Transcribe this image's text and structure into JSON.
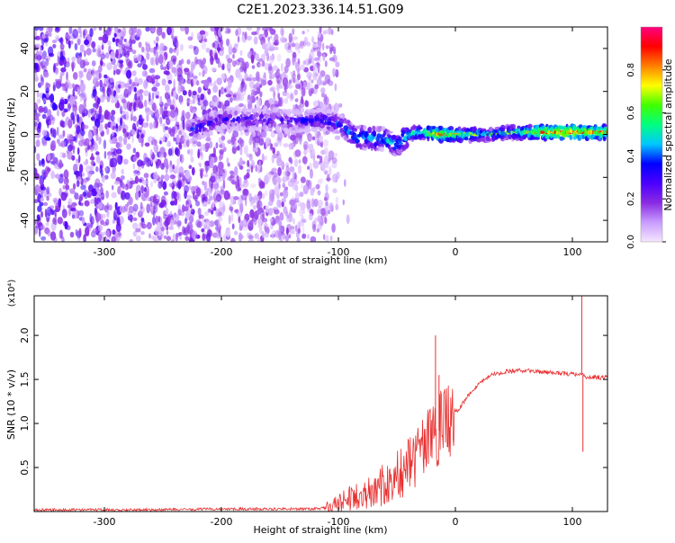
{
  "page_title": "C2E1.2023.336.14.51.G09",
  "chart_data": [
    {
      "type": "heatmap",
      "xlabel": "Height of straight line (km)",
      "ylabel": "Frequency (Hz)",
      "xlim": [
        -360,
        130
      ],
      "ylim": [
        -50,
        50
      ],
      "x_ticks": [
        -300,
        -200,
        -100,
        0,
        100
      ],
      "y_ticks": [
        -40,
        -20,
        0,
        20,
        40
      ],
      "colorbar": {
        "label": "Normalized spectral amplitude",
        "range": [
          0.0,
          1.0
        ],
        "ticks": [
          "0.0",
          "0.2",
          "0.4",
          "0.6",
          "0.8"
        ],
        "colors": [
          "#f4e6ff",
          "#c89cff",
          "#8a2be2",
          "#4b00ff",
          "#0000ff",
          "#00c8ff",
          "#00ff80",
          "#40ff00",
          "#ffff00",
          "#ff8000",
          "#ff0000",
          "#ff0080"
        ]
      },
      "ridge": [
        {
          "x": -225,
          "f": 2,
          "amp": 0.35
        },
        {
          "x": -200,
          "f": 7,
          "amp": 0.3
        },
        {
          "x": -170,
          "f": 7,
          "amp": 0.3
        },
        {
          "x": -140,
          "f": 6,
          "amp": 0.3
        },
        {
          "x": -115,
          "f": 7,
          "amp": 0.35
        },
        {
          "x": -100,
          "f": 5,
          "amp": 0.35
        },
        {
          "x": -85,
          "f": -1,
          "amp": 0.45
        },
        {
          "x": -70,
          "f": -2,
          "amp": 0.45
        },
        {
          "x": -60,
          "f": -2,
          "amp": 0.45
        },
        {
          "x": -50,
          "f": -5,
          "amp": 0.45
        },
        {
          "x": -40,
          "f": 0,
          "amp": 0.5
        },
        {
          "x": -30,
          "f": 1,
          "amp": 0.5
        },
        {
          "x": -15,
          "f": 0,
          "amp": 0.7
        },
        {
          "x": 0,
          "f": 0,
          "amp": 0.6
        },
        {
          "x": 25,
          "f": 0,
          "amp": 0.45
        },
        {
          "x": 50,
          "f": 1,
          "amp": 0.5
        },
        {
          "x": 75,
          "f": 1,
          "amp": 0.7
        },
        {
          "x": 100,
          "f": 1,
          "amp": 0.75
        },
        {
          "x": 130,
          "f": 1,
          "amp": 0.65
        }
      ]
    },
    {
      "type": "line",
      "xlabel": "Height of straight line (km)",
      "ylabel": "SNR (10 * v/v)",
      "yunit": "(x10⁴)",
      "xlim": [
        -360,
        130
      ],
      "ylim": [
        0,
        2.45
      ],
      "x_ticks": [
        -300,
        -200,
        -100,
        0,
        100
      ],
      "y_ticks": [
        0.5,
        1.0,
        1.5,
        2.0
      ],
      "y_tick_labels": [
        "0.5",
        "1.0",
        "1.5",
        "2.0"
      ],
      "color": "#e83030",
      "series": [
        {
          "x": [
            -360,
            -300,
            -250,
            -200,
            -150,
            -120,
            -105,
            -95,
            -85,
            -75,
            -65,
            -55,
            -45,
            -35,
            -28,
            -22,
            -18,
            -15,
            -12,
            -8,
            -4,
            0,
            5,
            10,
            15,
            20,
            25,
            30,
            40,
            50,
            60,
            70,
            80,
            90,
            100,
            105,
            108,
            110,
            112,
            118,
            125,
            130
          ],
          "y": [
            0.02,
            0.02,
            0.02,
            0.03,
            0.03,
            0.03,
            0.05,
            0.12,
            0.18,
            0.22,
            0.27,
            0.35,
            0.45,
            0.6,
            0.7,
            0.8,
            0.85,
            0.9,
            0.95,
            1.0,
            1.05,
            1.12,
            1.2,
            1.3,
            1.38,
            1.45,
            1.5,
            1.55,
            1.58,
            1.6,
            1.6,
            1.59,
            1.58,
            1.57,
            1.56,
            1.56,
            1.55,
            1.54,
            1.53,
            1.53,
            1.52,
            1.52
          ]
        }
      ],
      "spikes": [
        {
          "x": -17,
          "y": 2.0
        },
        {
          "x": -14,
          "y": 1.55
        },
        {
          "x": 108,
          "y": 2.45
        },
        {
          "x": 109,
          "y": 0.68
        }
      ]
    }
  ]
}
